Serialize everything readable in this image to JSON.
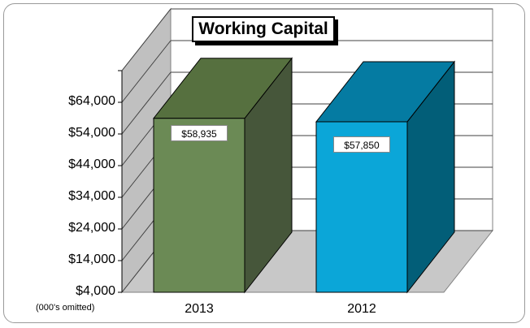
{
  "chart_data": {
    "type": "bar",
    "title": "Working Capital",
    "categories": [
      "2013",
      "2012"
    ],
    "values": [
      58935,
      57850
    ],
    "data_labels": [
      "$58,935",
      "$57,850"
    ],
    "ylim": [
      4000,
      74000
    ],
    "yticks": [
      "$4,000",
      "$14,000",
      "$24,000",
      "$34,000",
      "$44,000",
      "$54,000",
      "$64,000"
    ],
    "ytick_values": [
      4000,
      14000,
      24000,
      34000,
      44000,
      54000,
      64000
    ],
    "unit_note": "(000's omitted)",
    "grid": true,
    "three_d": true,
    "colors": {
      "bar_2013_front": "#6b8a55",
      "bar_2013_side": "#46563a",
      "bar_2013_top": "#56703f",
      "bar_2012_front": "#0ba6d8",
      "bar_2012_side": "#025e78",
      "bar_2012_top": "#057ba2",
      "wall": "#c0c0c0",
      "floor": "#c8c8c8"
    }
  }
}
